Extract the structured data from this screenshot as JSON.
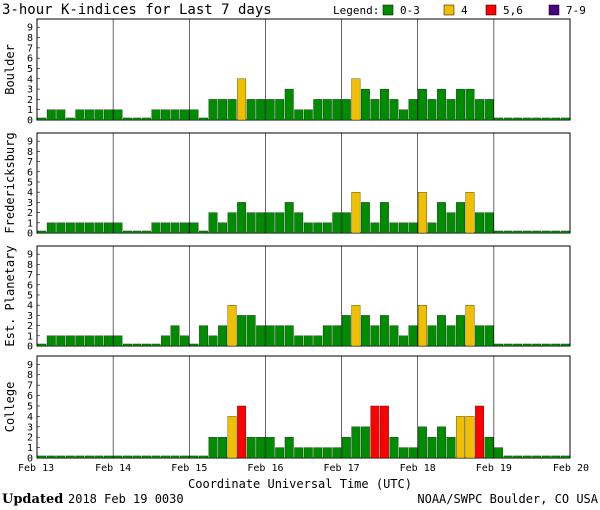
{
  "title": "3-hour K-indices for Last 7 days",
  "legend": {
    "label": "Legend:",
    "items": [
      {
        "label": "0-3",
        "color": "#008c00"
      },
      {
        "label": "4",
        "color": "#f0c000"
      },
      {
        "label": "5,6",
        "color": "#ff0000"
      },
      {
        "label": "7-9",
        "color": "#4b0082"
      }
    ]
  },
  "footer": {
    "updated_label": "Updated",
    "updated_value": "2018 Feb 19 0030",
    "credit": "NOAA/SWPC Boulder, CO USA"
  },
  "chart_data": {
    "type": "bar",
    "xlabel": "Coordinate Universal Time (UTC)",
    "x_tick_labels": [
      "Feb 13",
      "Feb 14",
      "Feb 15",
      "Feb 16",
      "Feb 17",
      "Feb 18",
      "Feb 19",
      "Feb 20"
    ],
    "ylim": [
      0,
      9
    ],
    "y_ticks": [
      0,
      1,
      2,
      3,
      4,
      5,
      6,
      7,
      8,
      9
    ],
    "bars_per_day": 8,
    "color_bins": {
      "0-3": "#008c00",
      "4": "#f0c000",
      "5-6": "#ff0000",
      "7-9": "#4b0082"
    },
    "stations": [
      {
        "name": "Boulder",
        "values": [
          0.2,
          1,
          1,
          0.2,
          1,
          1,
          1,
          1,
          1,
          0.2,
          0.2,
          0.2,
          1,
          1,
          1,
          1,
          1,
          0.2,
          2,
          2,
          2,
          4,
          2,
          2,
          2,
          2,
          3,
          1,
          1,
          2,
          2,
          2,
          2,
          4,
          3,
          2,
          3,
          2,
          1,
          2,
          3,
          2,
          3,
          2,
          3,
          3,
          2,
          2,
          0.2,
          0.2,
          0.2,
          0.2,
          0.2,
          0.2,
          0.2,
          0.2
        ]
      },
      {
        "name": "Fredericksburg",
        "values": [
          0.2,
          1,
          1,
          1,
          1,
          1,
          1,
          1,
          1,
          0.2,
          0.2,
          0.2,
          1,
          1,
          1,
          1,
          1,
          0.2,
          2,
          1,
          2,
          3,
          2,
          2,
          2,
          2,
          3,
          2,
          1,
          1,
          1,
          2,
          2,
          4,
          3,
          1,
          3,
          1,
          1,
          1,
          4,
          1,
          3,
          2,
          3,
          4,
          2,
          2,
          0.2,
          0.2,
          0.2,
          0.2,
          0.2,
          0.2,
          0.2,
          0.2
        ]
      },
      {
        "name": "Est. Planetary",
        "values": [
          0.2,
          1,
          1,
          1,
          1,
          1,
          1,
          1,
          1,
          0.2,
          0.2,
          0.2,
          0.2,
          1,
          2,
          1,
          0.2,
          2,
          1,
          2,
          4,
          3,
          3,
          2,
          2,
          2,
          2,
          1,
          1,
          1,
          2,
          2,
          3,
          4,
          3,
          2,
          3,
          2,
          1,
          2,
          4,
          2,
          3,
          2,
          3,
          4,
          2,
          2,
          0.2,
          0.2,
          0.2,
          0.2,
          0.2,
          0.2,
          0.2,
          0.2
        ]
      },
      {
        "name": "College",
        "values": [
          0.2,
          0.2,
          0.2,
          0.2,
          0.2,
          0.2,
          0.2,
          0.2,
          0.2,
          0.2,
          0.2,
          0.2,
          0.2,
          0.2,
          0.2,
          0.2,
          0.2,
          0.2,
          2,
          2,
          4,
          5,
          2,
          2,
          2,
          1,
          2,
          1,
          1,
          1,
          1,
          1,
          2,
          3,
          3,
          5,
          5,
          2,
          1,
          1,
          3,
          2,
          3,
          2,
          4,
          4,
          5,
          2,
          1,
          0.2,
          0.2,
          0.2,
          0.2,
          0.2,
          0.2,
          0.2
        ]
      }
    ]
  }
}
